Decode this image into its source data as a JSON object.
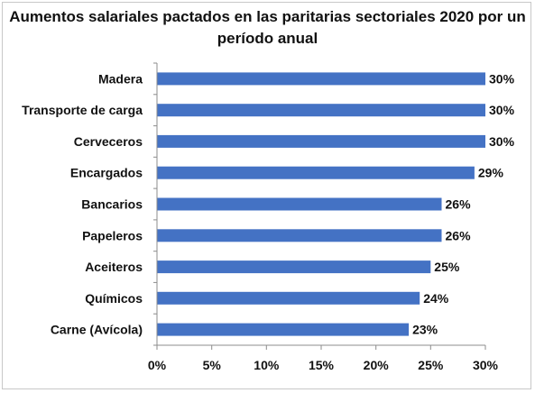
{
  "chart_data": {
    "type": "bar",
    "orientation": "horizontal",
    "title_line1": "Aumentos salariales pactados en las paritarias sectoriales 2020 por un",
    "title_line2": "período anual",
    "xlabel": "",
    "ylabel": "",
    "categories": [
      "Madera",
      "Transporte de carga",
      "Cerveceros",
      "Encargados",
      "Bancarios",
      "Papeleros",
      "Aceiteros",
      "Químicos",
      "Carne (Avícola)"
    ],
    "values": [
      30,
      30,
      30,
      29,
      26,
      26,
      25,
      24,
      23
    ],
    "value_labels": [
      "30%",
      "30%",
      "30%",
      "29%",
      "26%",
      "26%",
      "25%",
      "24%",
      "23%"
    ],
    "xlim": [
      0,
      30
    ],
    "x_ticks": [
      0,
      5,
      10,
      15,
      20,
      25,
      30
    ],
    "x_tick_labels": [
      "0%",
      "5%",
      "10%",
      "15%",
      "20%",
      "25%",
      "30%"
    ],
    "grid": false,
    "legend": "none",
    "bar_color": "#4472C4"
  }
}
